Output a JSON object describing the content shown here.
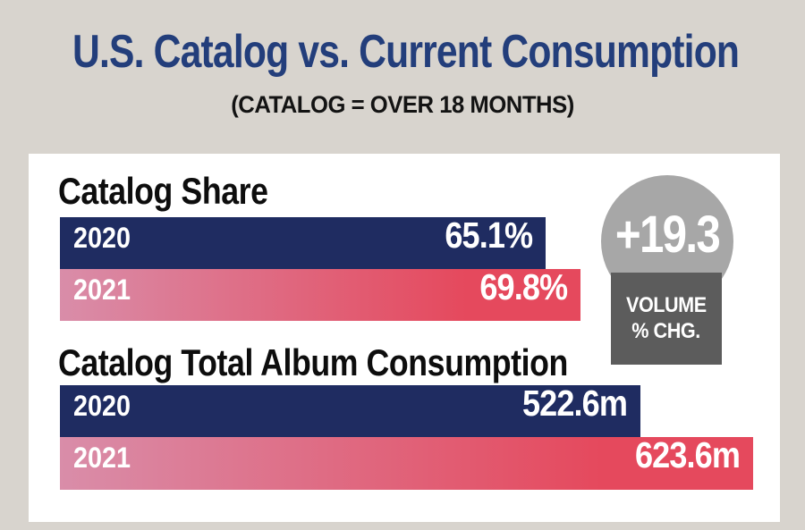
{
  "header": {
    "title": "U.S. Catalog vs. Current Consumption",
    "subtitle": "(CATALOG = OVER 18 MONTHS)"
  },
  "chart_data": [
    {
      "type": "bar",
      "orientation": "horizontal",
      "title": "Catalog Share",
      "categories": [
        "2020",
        "2021"
      ],
      "values": [
        65.1,
        69.8
      ],
      "value_labels": [
        "65.1%",
        "69.8%"
      ],
      "unit": "percent",
      "xlim": [
        0,
        69.8
      ],
      "grid": false,
      "legend": "none",
      "bar_colors": [
        "navy",
        "pink-gradient"
      ]
    },
    {
      "type": "bar",
      "orientation": "horizontal",
      "title": "Catalog Total Album Consumption",
      "categories": [
        "2020",
        "2021"
      ],
      "values": [
        522.6,
        623.6
      ],
      "value_labels": [
        "522.6m",
        "623.6m"
      ],
      "unit": "million albums",
      "xlim": [
        0,
        623.6
      ],
      "grid": false,
      "legend": "none",
      "bar_colors": [
        "navy",
        "pink-gradient"
      ]
    }
  ],
  "badge": {
    "value": "+19.3",
    "label_line1": "VOLUME",
    "label_line2": "% CHG."
  },
  "colors": {
    "background": "#d8d4ce",
    "card": "#ffffff",
    "title_navy": "#233e7b",
    "bar_navy": "#1f2c61",
    "bar_pink_start": "#d98da9",
    "bar_pink_end": "#e5495d",
    "badge_circle": "#a7a7a7",
    "badge_box": "#5c5c5c",
    "section_title": "#0d0d0d",
    "bar_text": "#ffffff"
  }
}
